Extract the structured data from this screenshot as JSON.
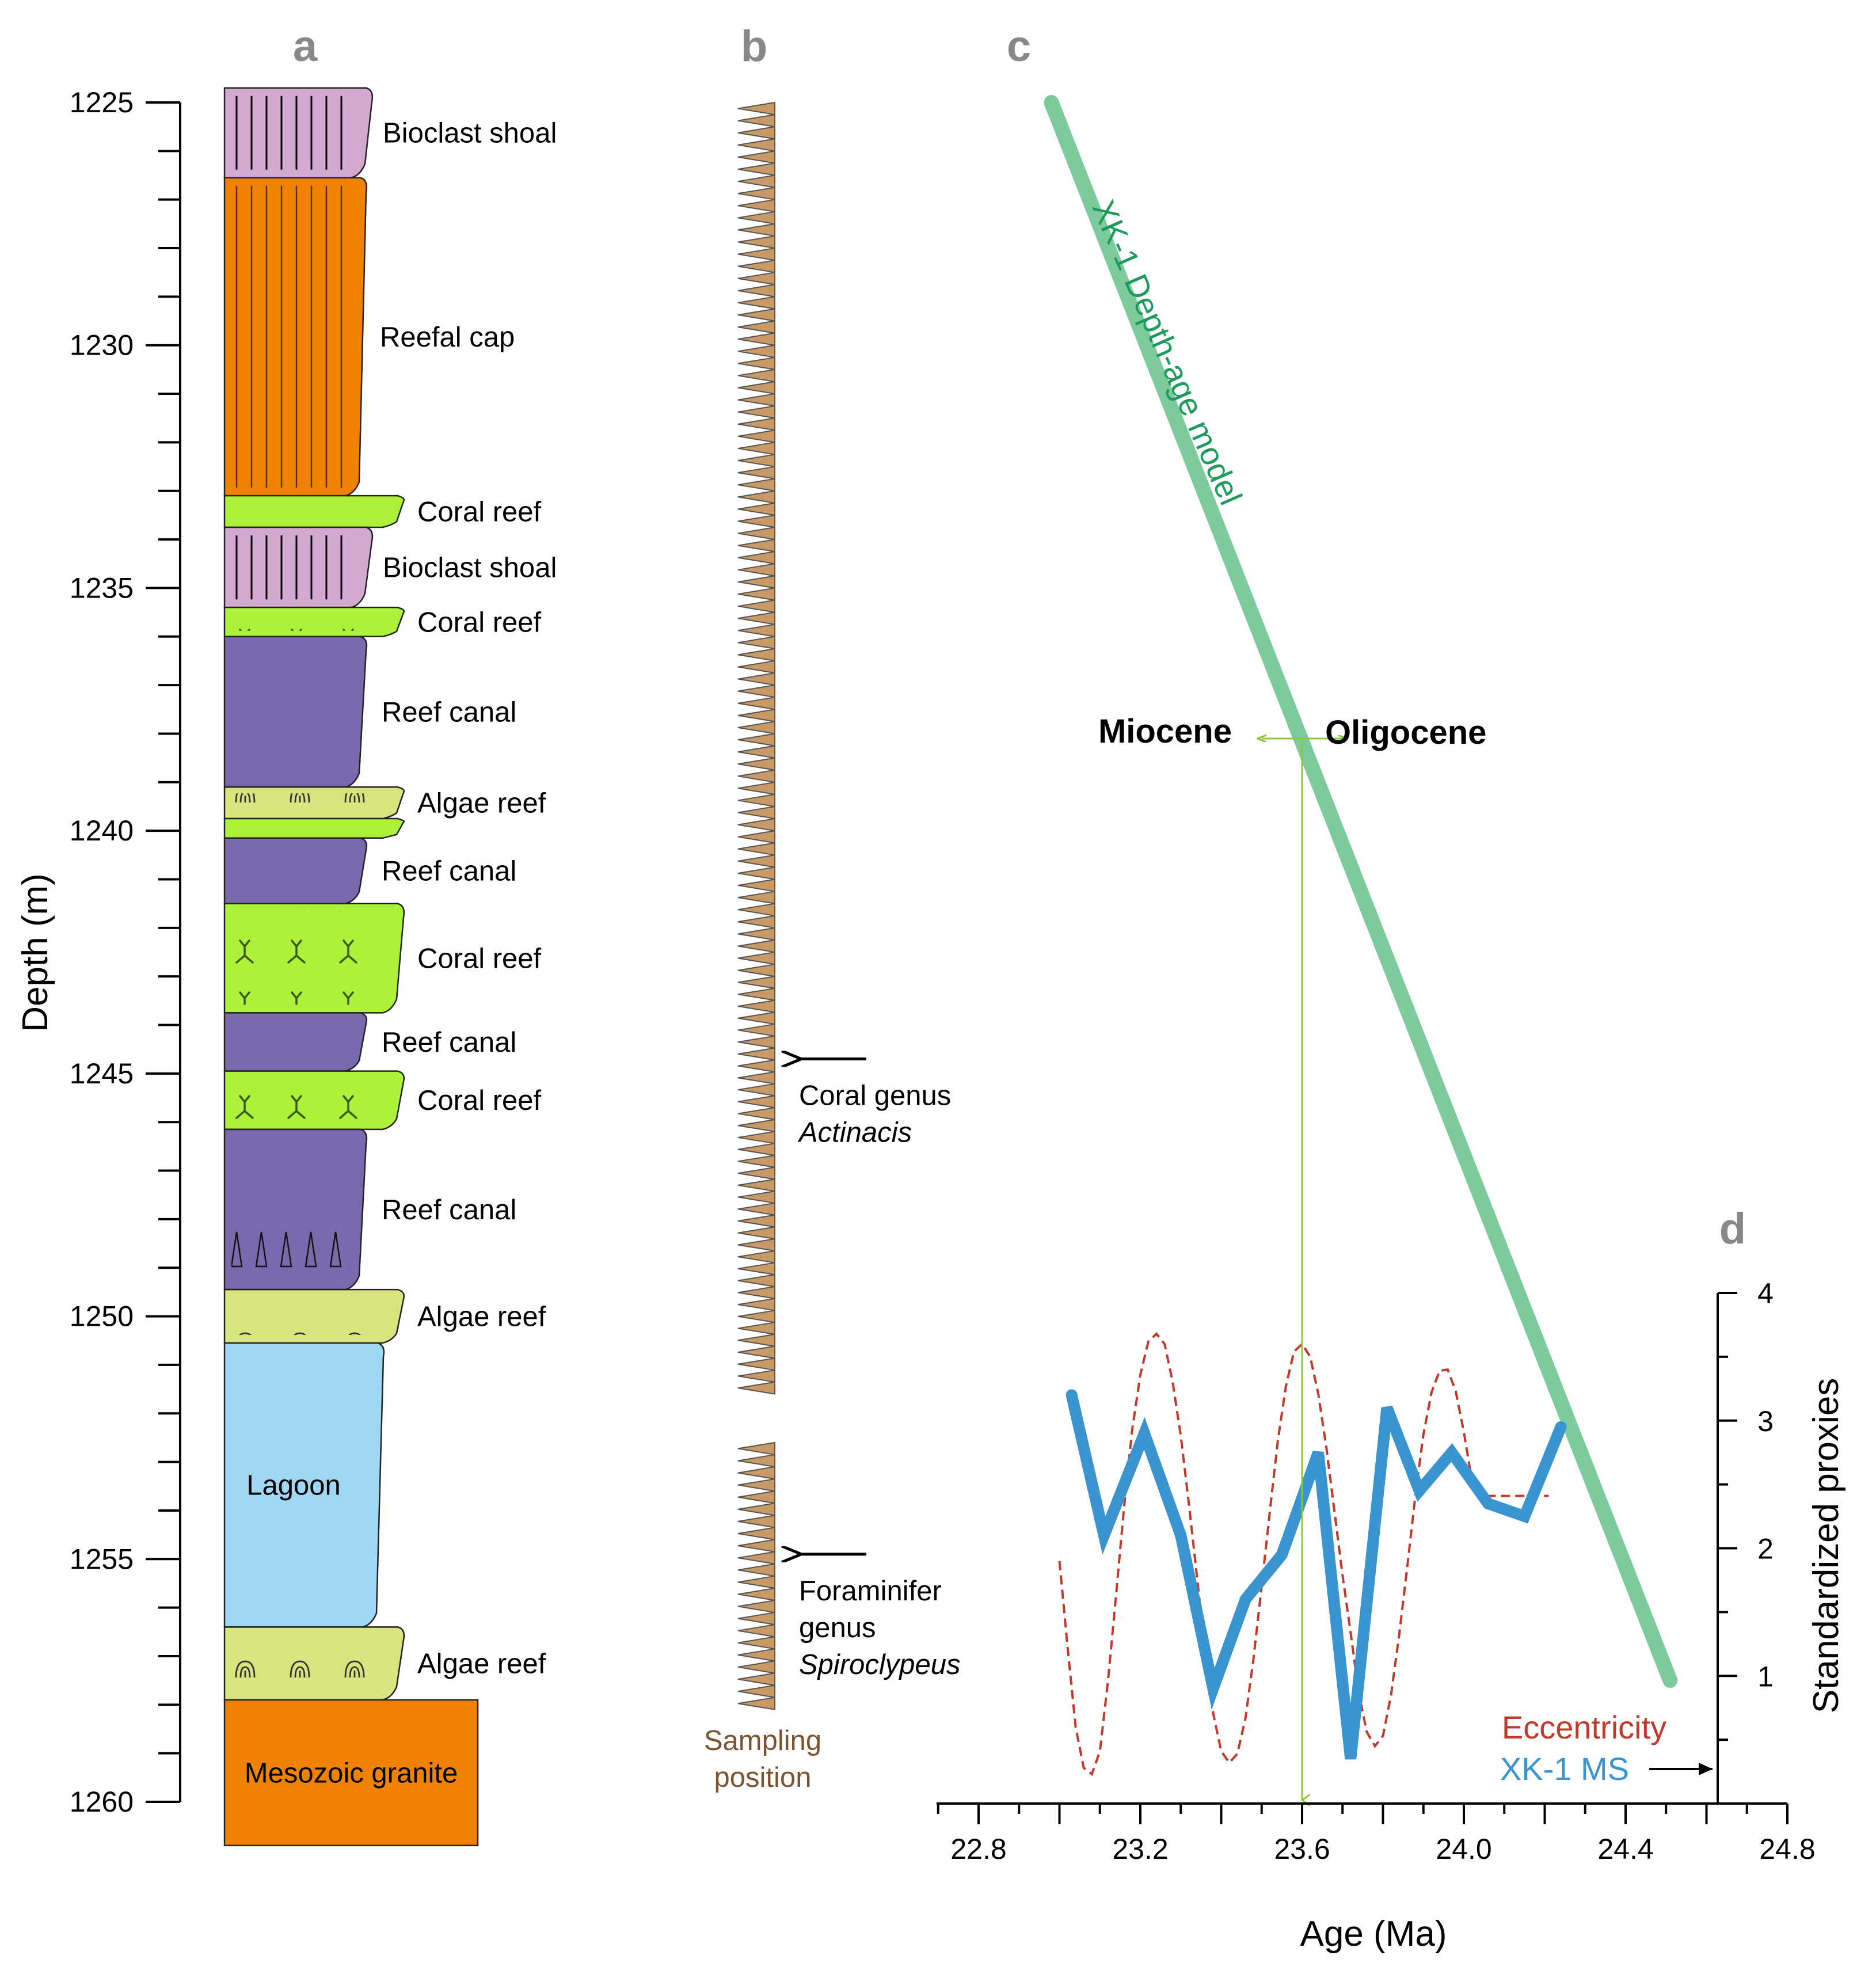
{
  "panels": {
    "a": "a",
    "b": "b",
    "c": "c",
    "d": "d"
  },
  "colors": {
    "bioclast_shoal": "#d4a9cf",
    "reefal_cap": "#ef8200",
    "coral_reef": "#adf23a",
    "reef_canal": "#7a69ad",
    "algae_reef": "#d8e47e",
    "lagoon": "#9fd7f4",
    "granite": "#ef8200",
    "sampling_triangle": "#c99a66",
    "depth_age_model": "#7dcb9d",
    "xk1_ms": "#3a94cf",
    "eccentricity": "#c0392b",
    "boundary_line": "#8cc63f"
  },
  "chart_data": [
    {
      "type": "stratigraphic-column",
      "ylabel": "Depth (m)",
      "ylim": [
        1225,
        1260
      ],
      "yticks": [
        "1225",
        "1230",
        "1235",
        "1240",
        "1245",
        "1250",
        "1255",
        "1260"
      ],
      "units": [
        {
          "label": "Bioclast shoal",
          "top": 1224.7,
          "bottom": 1226.55,
          "facies": "bioclast_shoal"
        },
        {
          "label": "Reefal cap",
          "top": 1226.55,
          "bottom": 1233.1,
          "facies": "reefal_cap"
        },
        {
          "label": "Coral reef",
          "top": 1233.1,
          "bottom": 1233.75,
          "facies": "coral_reef"
        },
        {
          "label": "Bioclast shoal",
          "top": 1233.75,
          "bottom": 1235.4,
          "facies": "bioclast_shoal"
        },
        {
          "label": "Coral reef",
          "top": 1235.4,
          "bottom": 1236.0,
          "facies": "coral_reef"
        },
        {
          "label": "Reef canal",
          "top": 1236.0,
          "bottom": 1239.1,
          "facies": "reef_canal"
        },
        {
          "label": "Algae reef",
          "top": 1239.1,
          "bottom": 1239.75,
          "facies": "algae_reef"
        },
        {
          "label": "",
          "top": 1239.75,
          "bottom": 1240.15,
          "facies": "coral_reef"
        },
        {
          "label": "Reef canal",
          "top": 1240.15,
          "bottom": 1241.5,
          "facies": "reef_canal"
        },
        {
          "label": "Coral reef",
          "top": 1241.5,
          "bottom": 1243.75,
          "facies": "coral_reef"
        },
        {
          "label": "Reef canal",
          "top": 1243.75,
          "bottom": 1244.95,
          "facies": "reef_canal"
        },
        {
          "label": "Coral reef",
          "top": 1244.95,
          "bottom": 1246.15,
          "facies": "coral_reef"
        },
        {
          "label": "Reef canal",
          "top": 1246.15,
          "bottom": 1249.45,
          "facies": "reef_canal"
        },
        {
          "label": "Algae reef",
          "top": 1249.45,
          "bottom": 1250.55,
          "facies": "algae_reef"
        },
        {
          "label": "Lagoon",
          "top": 1250.55,
          "bottom": 1256.4,
          "facies": "lagoon"
        },
        {
          "label": "Algae reef",
          "top": 1256.4,
          "bottom": 1257.9,
          "facies": "algae_reef"
        },
        {
          "label": "Mesozoic granite",
          "top": 1257.9,
          "bottom": 1260.9,
          "facies": "granite"
        }
      ]
    },
    {
      "type": "sampling-column",
      "label_line1": "Sampling",
      "label_line2": "position",
      "sampled_intervals": [
        {
          "top": 1225.0,
          "bottom": 1235.0
        },
        {
          "top": 1235.0,
          "bottom": 1236.0
        },
        {
          "top": 1236.0,
          "bottom": 1237.0
        },
        {
          "top": 1237.0,
          "bottom": 1238.0
        },
        {
          "top": 1238.0,
          "bottom": 1242.0
        },
        {
          "top": 1242.0,
          "bottom": 1243.0
        },
        {
          "top": 1243.0,
          "bottom": 1251.6
        },
        {
          "top": 1252.6,
          "bottom": 1258.1
        }
      ],
      "markers": [
        {
          "depth": 1244.7,
          "lines": [
            "Coral genus"
          ],
          "italic": "Actinacis"
        },
        {
          "depth": 1254.9,
          "lines": [
            "Foraminifer",
            "genus"
          ],
          "italic": "Spiroclypeus"
        }
      ]
    },
    {
      "type": "line",
      "title": "XK-1 Depth-age model",
      "xlabel": "Age (Ma)",
      "xlim": [
        22.7,
        24.8
      ],
      "xticks": [
        "22.8",
        "23.2",
        "23.6",
        "24.0",
        "24.4",
        "24.8"
      ],
      "depth_age": [
        {
          "age": 22.98,
          "depth": 1225.0
        },
        {
          "age": 24.51,
          "depth": 1257.5
        }
      ],
      "boundary": {
        "age": 23.6,
        "left_label": "Miocene",
        "right_label": "Oligocene"
      }
    },
    {
      "type": "line",
      "ylabel": "Standardized proxies",
      "ylim": [
        0,
        4
      ],
      "yticks": [
        "1",
        "2",
        "3",
        "4"
      ],
      "series": [
        {
          "name": "Eccentricity",
          "style": "dashed",
          "x": [
            23.0,
            23.02,
            23.04,
            23.06,
            23.08,
            23.1,
            23.12,
            23.14,
            23.16,
            23.18,
            23.2,
            23.22,
            23.24,
            23.26,
            23.28,
            23.3,
            23.32,
            23.34,
            23.36,
            23.38,
            23.4,
            23.42,
            23.44,
            23.46,
            23.48,
            23.5,
            23.52,
            23.54,
            23.56,
            23.58,
            23.6,
            23.62,
            23.64,
            23.66,
            23.68,
            23.7,
            23.72,
            23.74,
            23.76,
            23.78,
            23.8,
            23.82,
            23.84,
            23.86,
            23.88,
            23.9,
            23.92,
            23.94,
            23.96,
            23.98,
            24.0,
            24.02,
            24.04,
            24.06,
            24.08,
            24.1,
            24.12,
            24.14,
            24.16,
            24.18,
            24.2,
            24.21
          ],
          "values": [
            1.9,
            1.23,
            0.6,
            0.28,
            0.23,
            0.41,
            0.96,
            1.63,
            2.33,
            2.93,
            3.36,
            3.62,
            3.68,
            3.6,
            3.3,
            2.88,
            2.35,
            1.78,
            1.19,
            0.71,
            0.41,
            0.32,
            0.39,
            0.67,
            1.14,
            1.7,
            2.28,
            2.84,
            3.27,
            3.54,
            3.6,
            3.5,
            3.21,
            2.79,
            2.29,
            1.79,
            1.34,
            0.87,
            0.56,
            0.45,
            0.53,
            0.85,
            1.32,
            1.85,
            2.41,
            2.89,
            3.22,
            3.39,
            3.4,
            3.23,
            2.91,
            2.53,
            2.41,
            2.41,
            2.41,
            2.41,
            2.41,
            2.41,
            2.41,
            2.41,
            2.41,
            2.41
          ]
        },
        {
          "name": "XK-1 MS",
          "style": "solid",
          "x": [
            23.03,
            23.11,
            23.21,
            23.3,
            23.38,
            23.46,
            23.55,
            23.64,
            23.72,
            23.81,
            23.89,
            23.97,
            24.06,
            24.15,
            24.24
          ],
          "values": [
            3.2,
            2.1,
            2.9,
            2.1,
            0.9,
            1.6,
            1.95,
            2.75,
            0.35,
            3.1,
            2.45,
            2.75,
            2.35,
            2.25,
            2.95
          ]
        }
      ],
      "legend": [
        "Eccentricity",
        "XK-1 MS"
      ]
    }
  ]
}
